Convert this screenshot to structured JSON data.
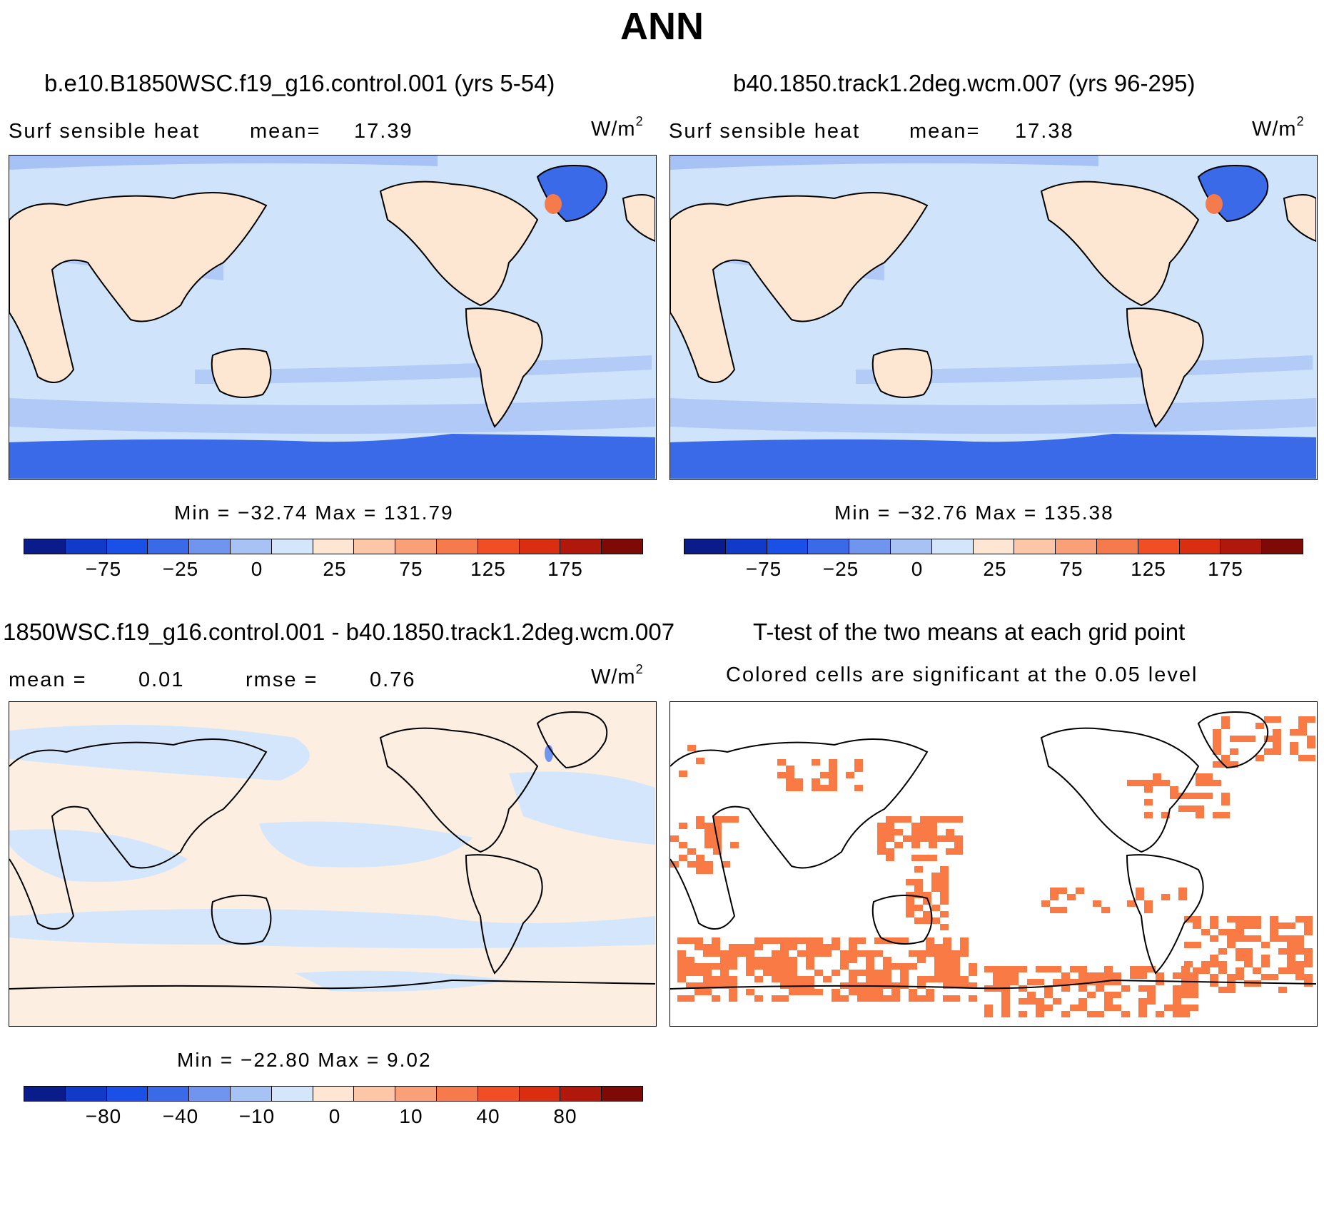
{
  "figure_title": "ANN",
  "palette": [
    "#0a1c8a",
    "#0f3bc8",
    "#1a50e6",
    "#3a6ae8",
    "#6f95ee",
    "#a7c2f5",
    "#d4e6fb",
    "#fde6d2",
    "#fdc6a6",
    "#f9a079",
    "#f57a4c",
    "#f04e25",
    "#d92e0f",
    "#b0180b",
    "#7e0a05"
  ],
  "panels": {
    "top_left": {
      "title": "b.e10.B1850WSC.f19_g16.control.001 (yrs 5-54)",
      "variable": "Surf  sensible  heat",
      "mean_label": "mean=",
      "mean_value": "17.39",
      "units": "W/m",
      "units_exp": "2",
      "minmax": "Min  =  −32.74  Max  =  131.79",
      "colorbar_ticks": [
        "−75",
        "−25",
        "0",
        "25",
        "75",
        "125",
        "175"
      ]
    },
    "top_right": {
      "title": "b40.1850.track1.2deg.wcm.007 (yrs 96-295)",
      "variable": "Surf  sensible  heat",
      "mean_label": "mean=",
      "mean_value": "17.38",
      "units": "W/m",
      "units_exp": "2",
      "minmax": "Min  =  −32.76  Max  =  135.38",
      "colorbar_ticks": [
        "−75",
        "−25",
        "0",
        "25",
        "75",
        "125",
        "175"
      ]
    },
    "bottom_left": {
      "title": "1850WSC.f19_g16.control.001 - b40.1850.track1.2deg.wcm.007",
      "mean_label": "mean  =",
      "mean_value": "0.01",
      "rmse_label": "rmse  =",
      "rmse_value": "0.76",
      "units": "W/m",
      "units_exp": "2",
      "minmax": "Min  =  −22.80  Max  =     9.02",
      "colorbar_ticks": [
        "−80",
        "−40",
        "−10",
        "0",
        "10",
        "40",
        "80"
      ]
    },
    "bottom_right": {
      "title": "T-test of the two means at each grid point",
      "subtitle": "Colored cells are significant at the 0.05 level",
      "significant_color": "#f97a44"
    }
  }
}
